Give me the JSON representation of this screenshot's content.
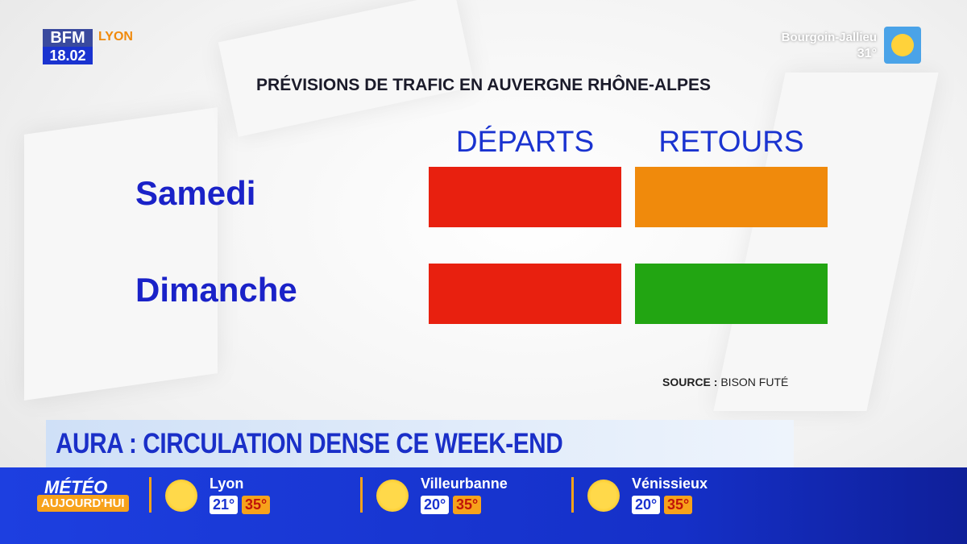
{
  "header": {
    "logo": "BFM",
    "channel": "LYON",
    "time": "18.02",
    "weather_city": "Bourgoin-Jallieu",
    "weather_temp": "31°"
  },
  "table": {
    "title": "PRÉVISIONS DE TRAFIC EN AUVERGNE RHÔNE-ALPES",
    "columns": [
      "DÉPARTS",
      "RETOURS"
    ],
    "rows": [
      {
        "label": "Samedi",
        "cells": [
          {
            "color": "#e8200f"
          },
          {
            "color": "#f08a0c"
          }
        ]
      },
      {
        "label": "Dimanche",
        "cells": [
          {
            "color": "#e8200f"
          },
          {
            "color": "#22a512"
          }
        ]
      }
    ],
    "source_label": "SOURCE :",
    "source": "BISON FUTÉ"
  },
  "headline": "AURA : CIRCULATION DENSE CE WEEK-END",
  "weather_bar": {
    "title": "MÉTÉO",
    "subtitle": "AUJOURD'HUI",
    "cities": [
      {
        "name": "Lyon",
        "min": "21°",
        "max": "35°"
      },
      {
        "name": "Villeurbanne",
        "min": "20°",
        "max": "35°"
      },
      {
        "name": "Vénissieux",
        "min": "20°",
        "max": "35°"
      }
    ]
  }
}
